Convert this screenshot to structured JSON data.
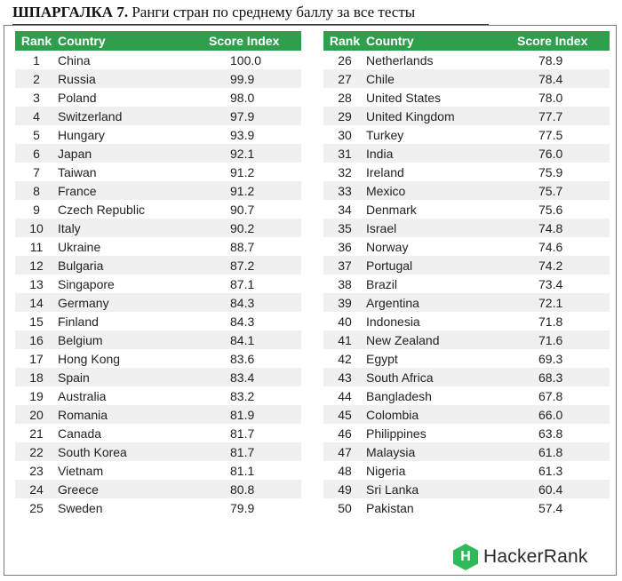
{
  "title": {
    "bold": "ШПАРГАЛКА 7.",
    "text": " Ранги стран по среднему баллу за все тесты"
  },
  "headers": {
    "rank": "Rank",
    "country": "Country",
    "score": "Score Index"
  },
  "left_rows": [
    {
      "rank": "1",
      "country": "China",
      "score": "100.0"
    },
    {
      "rank": "2",
      "country": "Russia",
      "score": "99.9"
    },
    {
      "rank": "3",
      "country": "Poland",
      "score": "98.0"
    },
    {
      "rank": "4",
      "country": "Switzerland",
      "score": "97.9"
    },
    {
      "rank": "5",
      "country": "Hungary",
      "score": "93.9"
    },
    {
      "rank": "6",
      "country": "Japan",
      "score": "92.1"
    },
    {
      "rank": "7",
      "country": "Taiwan",
      "score": "91.2"
    },
    {
      "rank": "8",
      "country": "France",
      "score": "91.2"
    },
    {
      "rank": "9",
      "country": "Czech Republic",
      "score": "90.7"
    },
    {
      "rank": "10",
      "country": "Italy",
      "score": "90.2"
    },
    {
      "rank": "11",
      "country": "Ukraine",
      "score": "88.7"
    },
    {
      "rank": "12",
      "country": "Bulgaria",
      "score": "87.2"
    },
    {
      "rank": "13",
      "country": "Singapore",
      "score": "87.1"
    },
    {
      "rank": "14",
      "country": "Germany",
      "score": "84.3"
    },
    {
      "rank": "15",
      "country": "Finland",
      "score": "84.3"
    },
    {
      "rank": "16",
      "country": "Belgium",
      "score": "84.1"
    },
    {
      "rank": "17",
      "country": "Hong Kong",
      "score": "83.6"
    },
    {
      "rank": "18",
      "country": "Spain",
      "score": "83.4"
    },
    {
      "rank": "19",
      "country": "Australia",
      "score": "83.2"
    },
    {
      "rank": "20",
      "country": "Romania",
      "score": "81.9"
    },
    {
      "rank": "21",
      "country": "Canada",
      "score": "81.7"
    },
    {
      "rank": "22",
      "country": "South Korea",
      "score": "81.7"
    },
    {
      "rank": "23",
      "country": "Vietnam",
      "score": "81.1"
    },
    {
      "rank": "24",
      "country": "Greece",
      "score": "80.8"
    },
    {
      "rank": "25",
      "country": "Sweden",
      "score": "79.9"
    }
  ],
  "right_rows": [
    {
      "rank": "26",
      "country": "Netherlands",
      "score": "78.9"
    },
    {
      "rank": "27",
      "country": "Chile",
      "score": "78.4"
    },
    {
      "rank": "28",
      "country": "United States",
      "score": "78.0"
    },
    {
      "rank": "29",
      "country": "United Kingdom",
      "score": "77.7"
    },
    {
      "rank": "30",
      "country": "Turkey",
      "score": "77.5"
    },
    {
      "rank": "31",
      "country": "India",
      "score": "76.0"
    },
    {
      "rank": "32",
      "country": "Ireland",
      "score": "75.9"
    },
    {
      "rank": "33",
      "country": "Mexico",
      "score": "75.7"
    },
    {
      "rank": "34",
      "country": "Denmark",
      "score": "75.6"
    },
    {
      "rank": "35",
      "country": "Israel",
      "score": "74.8"
    },
    {
      "rank": "36",
      "country": "Norway",
      "score": "74.6"
    },
    {
      "rank": "37",
      "country": "Portugal",
      "score": "74.2"
    },
    {
      "rank": "38",
      "country": "Brazil",
      "score": "73.4"
    },
    {
      "rank": "39",
      "country": "Argentina",
      "score": "72.1"
    },
    {
      "rank": "40",
      "country": "Indonesia",
      "score": "71.8"
    },
    {
      "rank": "41",
      "country": "New Zealand",
      "score": "71.6"
    },
    {
      "rank": "42",
      "country": "Egypt",
      "score": "69.3"
    },
    {
      "rank": "43",
      "country": "South Africa",
      "score": "68.3"
    },
    {
      "rank": "44",
      "country": "Bangladesh",
      "score": "67.8"
    },
    {
      "rank": "45",
      "country": "Colombia",
      "score": "66.0"
    },
    {
      "rank": "46",
      "country": "Philippines",
      "score": "63.8"
    },
    {
      "rank": "47",
      "country": "Malaysia",
      "score": "61.8"
    },
    {
      "rank": "48",
      "country": "Nigeria",
      "score": "61.3"
    },
    {
      "rank": "49",
      "country": "Sri Lanka",
      "score": "60.4"
    },
    {
      "rank": "50",
      "country": "Pakistan",
      "score": "57.4"
    }
  ],
  "logo": {
    "mark": "H",
    "text": "HackerRank",
    "icon": "hackerrank-logo-icon"
  },
  "colors": {
    "header_green": "#2f9f4e",
    "logo_green": "#2fba5a",
    "stripe": "#f0f0f0"
  }
}
